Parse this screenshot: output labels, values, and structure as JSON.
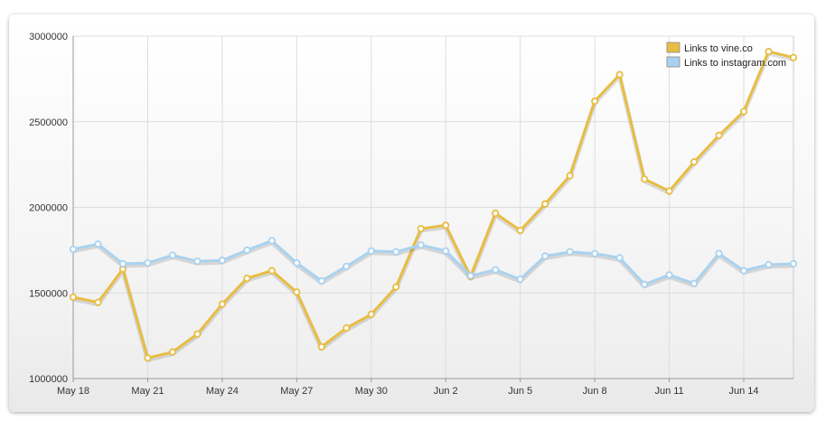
{
  "chart_data": {
    "type": "line",
    "title": "",
    "xlabel": "",
    "ylabel": "",
    "ylim": [
      1000000,
      3000000
    ],
    "yticks": [
      "1000000",
      "1500000",
      "2000000",
      "2500000",
      "3000000"
    ],
    "xticks": [
      "May 18",
      "May 21",
      "May 24",
      "May 27",
      "May 30",
      "Jun 2",
      "Jun 5",
      "Jun 8",
      "Jun 11",
      "Jun 14"
    ],
    "x": [
      "May 18",
      "May 19",
      "May 20",
      "May 21",
      "May 22",
      "May 23",
      "May 24",
      "May 25",
      "May 26",
      "May 27",
      "May 28",
      "May 29",
      "May 30",
      "May 31",
      "Jun 1",
      "Jun 2",
      "Jun 3",
      "Jun 4",
      "Jun 5",
      "Jun 6",
      "Jun 7",
      "Jun 8",
      "Jun 9",
      "Jun 10",
      "Jun 11",
      "Jun 12",
      "Jun 13",
      "Jun 14",
      "Jun 15",
      "Jun 16"
    ],
    "legend_position": "top-right",
    "grid": true,
    "series": [
      {
        "name": "Links to vine.co",
        "color": "#e8bd42",
        "values": [
          1475000,
          1445000,
          1640000,
          1120000,
          1155000,
          1260000,
          1435000,
          1585000,
          1630000,
          1505000,
          1185000,
          1295000,
          1375000,
          1535000,
          1875000,
          1895000,
          1595000,
          1965000,
          1865000,
          2020000,
          2185000,
          2620000,
          2775000,
          2165000,
          2095000,
          2265000,
          2420000,
          2560000,
          2910000,
          2875000
        ]
      },
      {
        "name": "Links to instagram.com",
        "color": "#a9d2ef",
        "values": [
          1755000,
          1785000,
          1670000,
          1675000,
          1720000,
          1685000,
          1690000,
          1750000,
          1805000,
          1675000,
          1570000,
          1655000,
          1745000,
          1740000,
          1780000,
          1745000,
          1600000,
          1635000,
          1580000,
          1715000,
          1740000,
          1730000,
          1705000,
          1550000,
          1605000,
          1555000,
          1730000,
          1630000,
          1665000,
          1670000
        ]
      }
    ]
  }
}
